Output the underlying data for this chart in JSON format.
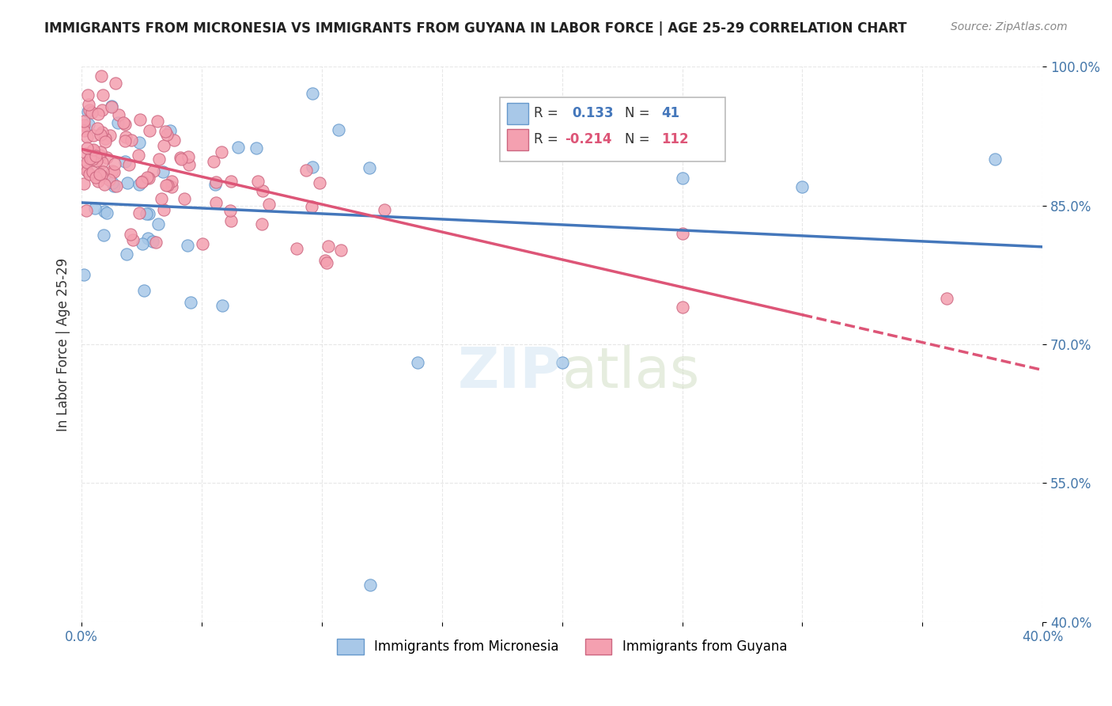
{
  "title": "IMMIGRANTS FROM MICRONESIA VS IMMIGRANTS FROM GUYANA IN LABOR FORCE | AGE 25-29 CORRELATION CHART",
  "source": "Source: ZipAtlas.com",
  "ylabel": "In Labor Force | Age 25-29",
  "xlim": [
    0.0,
    0.4
  ],
  "ylim": [
    0.4,
    1.0
  ],
  "micronesia_color": "#a8c8e8",
  "micronesia_edge": "#6699cc",
  "guyana_color": "#f4a0b0",
  "guyana_edge": "#cc6680",
  "micronesia_R": 0.133,
  "micronesia_N": 41,
  "guyana_R": -0.214,
  "guyana_N": 112,
  "trend_micronesia_color": "#4477bb",
  "trend_guyana_color": "#dd5577",
  "background_color": "#ffffff"
}
